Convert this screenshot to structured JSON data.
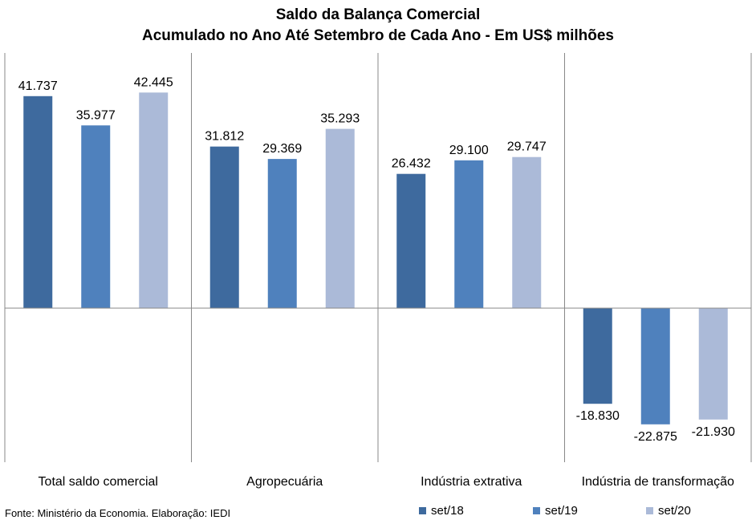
{
  "chart_data": {
    "type": "bar",
    "title": "Saldo da Balança Comercial",
    "subtitle": "Acumulado no Ano Até Setembro de Cada Ano - Em US$ milhões",
    "categories": [
      "Total saldo comercial",
      "Agropecuária",
      "Indústria extrativa",
      "Indústria de transformação"
    ],
    "series": [
      {
        "name": "set/18",
        "color": "#3E6A9E",
        "values": [
          41737,
          31812,
          26432,
          -18830
        ],
        "labels": [
          "41.737",
          "31.812",
          "26.432",
          "-18.830"
        ]
      },
      {
        "name": "set/19",
        "color": "#4F81BD",
        "values": [
          35977,
          29369,
          29100,
          -22875
        ],
        "labels": [
          "35.977",
          "29.369",
          "29.100",
          "-22.875"
        ]
      },
      {
        "name": "set/20",
        "color": "#ABBAD8",
        "values": [
          42445,
          35293,
          29747,
          -21930
        ],
        "labels": [
          "42.445",
          "35.293",
          "29.747",
          "-21.930"
        ]
      }
    ],
    "ylim": [
      -28000,
      50000
    ],
    "grid": false,
    "legend": "bottom-right"
  },
  "source": "Fonte: Ministério da Economia. Elaboração: IEDI"
}
